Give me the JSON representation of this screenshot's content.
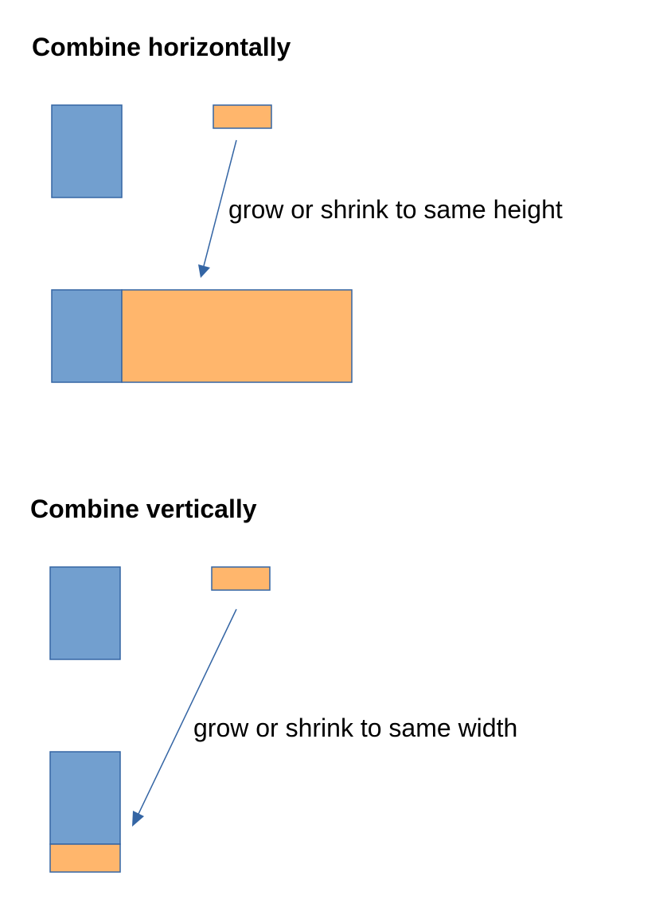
{
  "colors": {
    "blue": "#729fcf",
    "orange": "#ffb66c",
    "stroke": "#3465a4"
  },
  "horizontal": {
    "title": "Combine horizontally",
    "annotation": "grow or shrink to same height"
  },
  "vertical": {
    "title": "Combine vertically",
    "annotation": "grow or shrink to same width"
  }
}
